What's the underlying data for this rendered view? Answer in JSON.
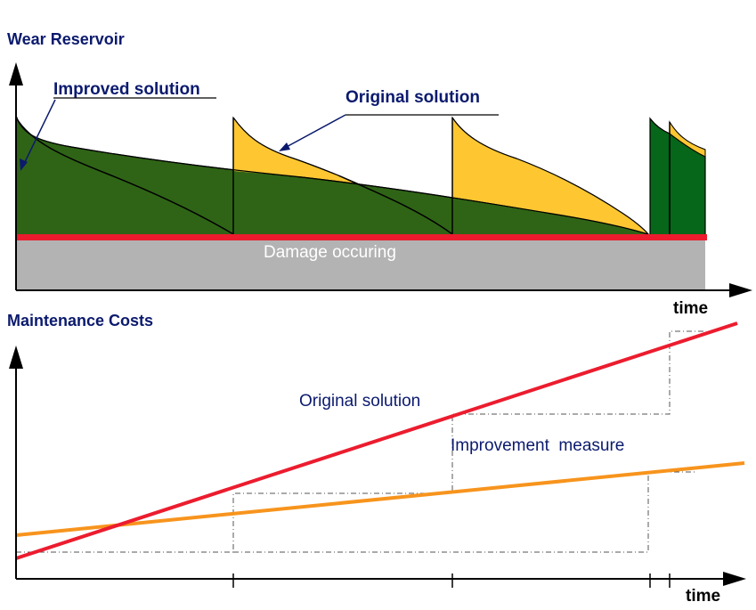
{
  "top_panel": {
    "title": "Wear Reservoir",
    "improved_label": "Improved solution",
    "original_label": "Original solution",
    "damage_label": "Damage occuring",
    "x_axis_label": "time"
  },
  "bottom_panel": {
    "title": "Maintenance Costs",
    "original_label": "Original solution",
    "improvement_label": "Improvement  measure",
    "x_axis_label": "time"
  },
  "colors": {
    "dark_green": "#2f6416",
    "bright_green": "#066619",
    "yellow": "#fec732",
    "red_line": "#ec1c2e",
    "orange_line": "#f7941d",
    "damage_gray": "#b3b3b3",
    "text_navy": "#0b1a6e"
  }
}
